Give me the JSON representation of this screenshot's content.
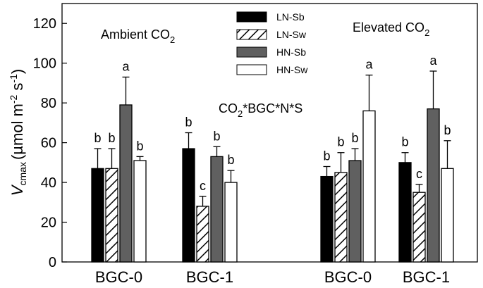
{
  "chart_data": {
    "type": "bar",
    "ylabel": {
      "main": "V",
      "main_sub": "cmax",
      "units_prefix": "(µmol m",
      "exp1": "-2",
      "units_mid": " s",
      "exp2": "-1",
      "units_suffix": ")"
    },
    "ylim": [
      0,
      130
    ],
    "yticks": [
      0,
      20,
      40,
      60,
      80,
      100,
      120
    ],
    "grid": false,
    "legend_position": "top-center",
    "series": [
      {
        "name": "LN-Sb",
        "fill": "#000000",
        "hatch": false
      },
      {
        "name": "LN-Sw",
        "fill": "#ffffff",
        "hatch": true
      },
      {
        "name": "HN-Sb",
        "fill": "#606060",
        "hatch": false
      },
      {
        "name": "HN-Sw",
        "fill": "#ffffff",
        "hatch": false
      }
    ],
    "groups": [
      {
        "label": "BGC-0",
        "values": [
          47,
          47,
          79,
          51
        ],
        "errors": [
          10,
          10,
          14,
          2
        ],
        "letters": [
          "b",
          "b",
          "a",
          "b"
        ]
      },
      {
        "label": "BGC-1",
        "values": [
          57,
          28,
          53,
          40
        ],
        "errors": [
          8,
          5,
          5,
          6
        ],
        "letters": [
          "b",
          "c",
          "b",
          "b"
        ]
      },
      {
        "label": "BGC-0",
        "values": [
          43,
          45,
          51,
          76
        ],
        "errors": [
          5,
          10,
          6,
          18
        ],
        "letters": [
          "b",
          "b",
          "b",
          "a"
        ]
      },
      {
        "label": "BGC-1",
        "values": [
          50,
          35,
          77,
          47
        ],
        "errors": [
          5,
          4,
          19,
          14
        ],
        "letters": [
          "b",
          "c",
          "a",
          "b"
        ]
      }
    ],
    "panels": [
      {
        "label": "Ambient CO",
        "sub": "2"
      },
      {
        "label": "Elevated CO",
        "sub": "2"
      }
    ],
    "annotation": {
      "pre": "CO",
      "sub": "2",
      "post": "*BGC*N*S"
    }
  }
}
